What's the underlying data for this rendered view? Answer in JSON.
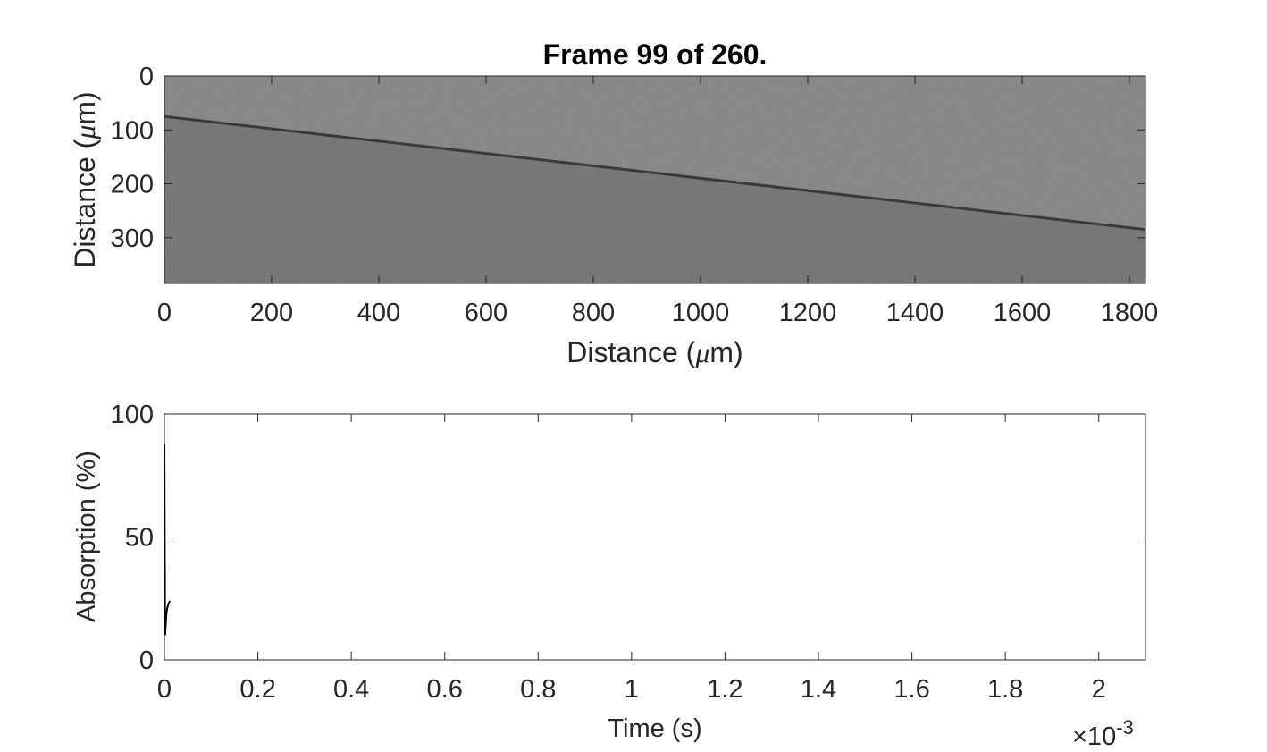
{
  "chart_data": [
    {
      "type": "heatmap",
      "title": "Frame   99 of 260.",
      "xlabel": "Distance (μm)",
      "ylabel": "Distance (μm)",
      "xlim": [
        0,
        1830
      ],
      "ylim": [
        0,
        385
      ],
      "y_reversed": true,
      "xticks": [
        0,
        200,
        400,
        600,
        800,
        1000,
        1200,
        1400,
        1600,
        1800
      ],
      "yticks": [
        0,
        100,
        200,
        300
      ],
      "colormap": "gray",
      "features": [
        {
          "kind": "line",
          "label": "interface",
          "x": [
            0,
            1830
          ],
          "y": [
            75,
            285
          ],
          "color": "#3a3a3a"
        }
      ]
    },
    {
      "type": "line",
      "xlabel": "Time (s)",
      "ylabel": "Absorption (%)",
      "x_exponent": "×10^-3",
      "xlim": [
        0,
        0.0021
      ],
      "ylim": [
        0,
        100
      ],
      "xticks": [
        0,
        0.0002,
        0.0004,
        0.0006,
        0.0008,
        0.001,
        0.0012,
        0.0014,
        0.0016,
        0.0018,
        0.002
      ],
      "xticklabels": [
        "0",
        "0.2",
        "0.4",
        "0.6",
        "0.8",
        "1",
        "1.2",
        "1.4",
        "1.6",
        "1.8",
        "2"
      ],
      "yticks": [
        0,
        50,
        100
      ],
      "series": [
        {
          "color": "#000000",
          "x": [
            0,
            1.5e-06,
            3e-06,
            4.5e-06,
            6e-06,
            7.5e-06,
            9e-06,
            1.05e-05,
            1.2e-05
          ],
          "y": [
            88,
            10,
            15,
            19,
            21,
            22,
            23,
            23.5,
            24
          ]
        }
      ]
    }
  ],
  "ui": {
    "title": "Frame   99 of 260.",
    "top": {
      "xlabel_pre": "Distance (",
      "mu": "μ",
      "xlabel_post": "m)",
      "ylabel_pre": "Distance (",
      "ylabel_post": "m)"
    },
    "bottom": {
      "xlabel": "Time (s)",
      "ylabel": "Absorption (%)",
      "expo_base": "×10",
      "expo_power": "-3"
    }
  }
}
